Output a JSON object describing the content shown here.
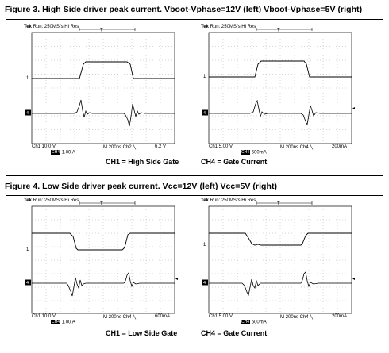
{
  "figures": [
    {
      "title": "Figure 3. High Side driver peak current. Vboot-Vphase=12V (left) Vboot-Vphase=5V (right)",
      "scopes": [
        {
          "header_tek": "Tek",
          "header_rest": "Run: 250MS/s     Hi Res",
          "trigger_mark": "T",
          "ch1_scale": "Ch1    10.0 V",
          "ch4_tag": "CH4",
          "ch4_scale": "1.00 A",
          "timebase": "M 200ns  Ch2 ╲",
          "trigger_level": "6.2 V"
        },
        {
          "header_tek": "Tek",
          "header_rest": "Run: 250MS/s     Hi Res",
          "trigger_mark": "T",
          "ch1_scale": "Ch1    5.00 V",
          "ch4_tag": "CH4",
          "ch4_scale": "500mA",
          "timebase": "M 200ns  Ch4 ╲",
          "trigger_level": "200mA"
        }
      ],
      "captions": [
        "CH1 = High Side Gate",
        "CH4 = Gate Current"
      ]
    },
    {
      "title": "Figure 4. Low Side driver peak current. Vcc=12V (left) Vcc=5V (right)",
      "scopes": [
        {
          "header_tek": "Tek",
          "header_rest": "Run: 250MS/s     Hi Res",
          "trigger_mark": "T",
          "ch1_scale": "Ch1    10.0 V",
          "ch4_tag": "CH4",
          "ch4_scale": "1.00 A",
          "timebase": "M 200ns  Ch4 ╲",
          "trigger_level": "600mA"
        },
        {
          "header_tek": "Tek",
          "header_rest": "Run: 250MS/s     Hi Res",
          "trigger_mark": "T",
          "ch1_scale": "Ch1    5.00 V",
          "ch4_tag": "CH4",
          "ch4_scale": "500mA",
          "timebase": "M 200ns  Ch4 ╲",
          "trigger_level": "200mA"
        }
      ],
      "captions": [
        "CH1 = Low Side Gate",
        "CH4 = Gate Current"
      ]
    }
  ],
  "channel_markers": {
    "ch1": "1",
    "ch4": "4"
  }
}
